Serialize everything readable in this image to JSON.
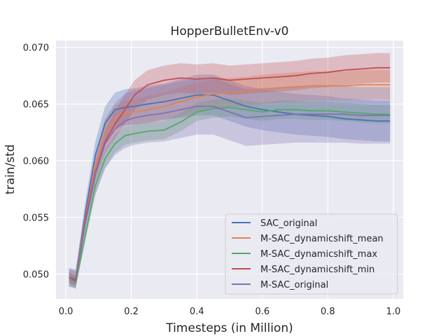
{
  "chart_data": {
    "type": "line",
    "title": "HopperBulletEnv-v0",
    "xlabel": "Timesteps (in Million)",
    "ylabel": "train/std",
    "xlim": [
      -0.03,
      1.03
    ],
    "ylim": [
      0.0478,
      0.0706
    ],
    "xticks": [
      0.0,
      0.2,
      0.4,
      0.6,
      0.8,
      1.0
    ],
    "xtick_labels": [
      "0.0",
      "0.2",
      "0.4",
      "0.6",
      "0.8",
      "1.0"
    ],
    "yticks": [
      0.05,
      0.055,
      0.06,
      0.065,
      0.07
    ],
    "ytick_labels": [
      "0.050",
      "0.055",
      "0.060",
      "0.065",
      "0.070"
    ],
    "grid": true,
    "background": "#eaeaf2",
    "legend_position": "lower-right",
    "x": [
      0.01,
      0.03,
      0.06,
      0.09,
      0.12,
      0.15,
      0.18,
      0.21,
      0.25,
      0.3,
      0.35,
      0.4,
      0.45,
      0.5,
      0.55,
      0.6,
      0.65,
      0.7,
      0.75,
      0.8,
      0.85,
      0.9,
      0.95,
      0.99
    ],
    "series": [
      {
        "name": "SAC_original",
        "color": "#4c72b0",
        "values": [
          0.0497,
          0.0495,
          0.0555,
          0.0605,
          0.0633,
          0.0645,
          0.0647,
          0.0648,
          0.065,
          0.0652,
          0.0655,
          0.0658,
          0.0658,
          0.0653,
          0.0648,
          0.0645,
          0.0643,
          0.0641,
          0.064,
          0.0639,
          0.0637,
          0.0636,
          0.0635,
          0.0635
        ],
        "band": [
          0.0008,
          0.0008,
          0.001,
          0.0012,
          0.0015,
          0.0015,
          0.0016,
          0.0016,
          0.0016,
          0.0016,
          0.0017,
          0.0018,
          0.0018,
          0.0018,
          0.0018,
          0.0018,
          0.0018,
          0.0018,
          0.0018,
          0.0018,
          0.0018,
          0.0018,
          0.0018,
          0.0018
        ]
      },
      {
        "name": "M-SAC_dynamicshift_mean",
        "color": "#dd8452",
        "values": [
          0.0497,
          0.0496,
          0.055,
          0.0595,
          0.0625,
          0.0638,
          0.0642,
          0.0643,
          0.0645,
          0.0648,
          0.0652,
          0.0656,
          0.0659,
          0.066,
          0.0661,
          0.0663,
          0.0664,
          0.0665,
          0.0666,
          0.0666,
          0.0666,
          0.0667,
          0.0667,
          0.0667
        ],
        "band": [
          0.0006,
          0.0006,
          0.0008,
          0.001,
          0.0011,
          0.0011,
          0.0011,
          0.0011,
          0.0012,
          0.0012,
          0.0013,
          0.0013,
          0.0013,
          0.0013,
          0.0013,
          0.0013,
          0.0013,
          0.0013,
          0.0013,
          0.0013,
          0.0013,
          0.0013,
          0.0013,
          0.0013
        ]
      },
      {
        "name": "M-SAC_dynamicshift_max",
        "color": "#55a868",
        "values": [
          0.0497,
          0.0492,
          0.0535,
          0.0578,
          0.0602,
          0.0615,
          0.0622,
          0.0624,
          0.0626,
          0.0627,
          0.0634,
          0.0643,
          0.0646,
          0.0647,
          0.0645,
          0.0643,
          0.0645,
          0.0645,
          0.0644,
          0.0644,
          0.0643,
          0.0642,
          0.0641,
          0.0641
        ],
        "band": [
          0.0005,
          0.0005,
          0.0006,
          0.0008,
          0.0008,
          0.0008,
          0.0008,
          0.0008,
          0.0008,
          0.0008,
          0.0008,
          0.0008,
          0.0008,
          0.0008,
          0.0008,
          0.0008,
          0.0008,
          0.0008,
          0.0008,
          0.0008,
          0.0008,
          0.0008,
          0.0008,
          0.0008
        ]
      },
      {
        "name": "M-SAC_dynamicshift_min",
        "color": "#c44e52",
        "values": [
          0.0497,
          0.0494,
          0.0548,
          0.059,
          0.0617,
          0.0632,
          0.0645,
          0.0658,
          0.0667,
          0.0671,
          0.0673,
          0.0672,
          0.0673,
          0.0671,
          0.0672,
          0.0673,
          0.0674,
          0.0675,
          0.0677,
          0.0678,
          0.068,
          0.0681,
          0.0682,
          0.0682
        ],
        "band": [
          0.0004,
          0.0004,
          0.0006,
          0.0008,
          0.001,
          0.0012,
          0.0013,
          0.0013,
          0.0013,
          0.0013,
          0.0013,
          0.0013,
          0.0013,
          0.0013,
          0.0013,
          0.0013,
          0.0013,
          0.0013,
          0.0013,
          0.0013,
          0.0013,
          0.0013,
          0.0013,
          0.0013
        ]
      },
      {
        "name": "M-SAC_original",
        "color": "#8172b3",
        "values": [
          0.0497,
          0.0496,
          0.0545,
          0.0588,
          0.0615,
          0.0628,
          0.0635,
          0.0638,
          0.064,
          0.0642,
          0.0645,
          0.0648,
          0.0648,
          0.0643,
          0.0638,
          0.0639,
          0.064,
          0.0641,
          0.0641,
          0.0641,
          0.0641,
          0.064,
          0.064,
          0.064
        ],
        "band": [
          0.0008,
          0.0008,
          0.0012,
          0.0018,
          0.0022,
          0.0023,
          0.0024,
          0.0024,
          0.0024,
          0.0025,
          0.0025,
          0.0025,
          0.0025,
          0.0025,
          0.0025,
          0.0025,
          0.0025,
          0.0025,
          0.0025,
          0.0025,
          0.0025,
          0.0025,
          0.0025,
          0.0025
        ]
      }
    ]
  }
}
